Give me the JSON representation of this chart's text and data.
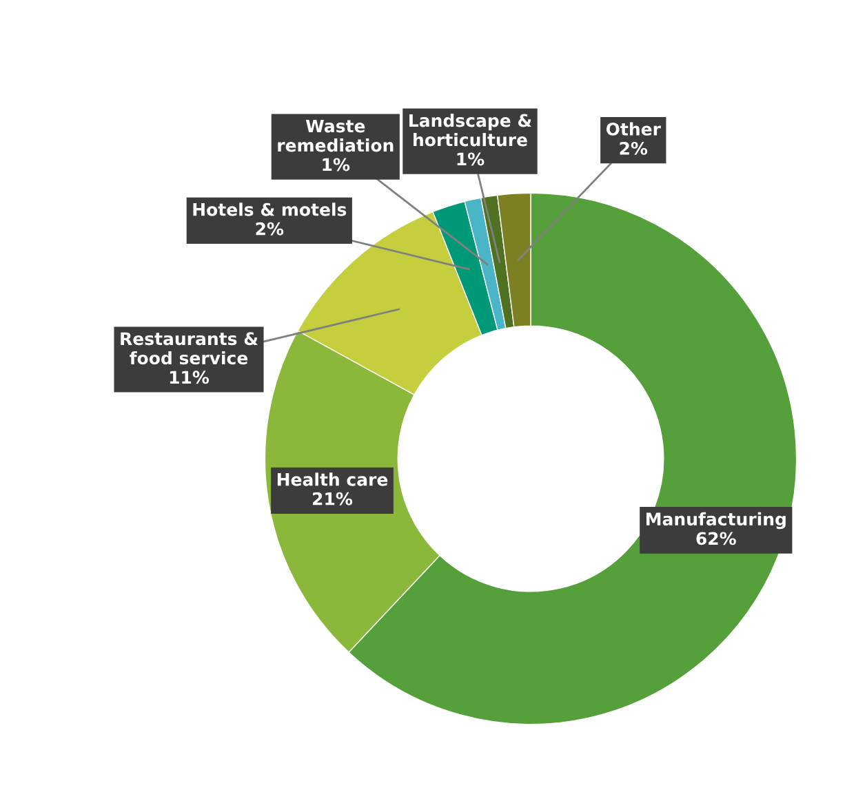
{
  "chart_data": {
    "type": "donut",
    "categories": [
      "Manufacturing",
      "Health care",
      "Restaurants &\nfood service",
      "Hotels & motels",
      "Waste\nremediation",
      "Landscape &\nhorticulture",
      "Other"
    ],
    "values": [
      62,
      21,
      11,
      2,
      1,
      1,
      2
    ],
    "value_labels": [
      "62%",
      "21%",
      "11%",
      "2%",
      "1%",
      "1%",
      "2%"
    ],
    "colors": [
      "#55a03a",
      "#8bb73b",
      "#c5cf3d",
      "#009977",
      "#4bb5c8",
      "#4e7220",
      "#7c7f22"
    ],
    "legend": false
  }
}
